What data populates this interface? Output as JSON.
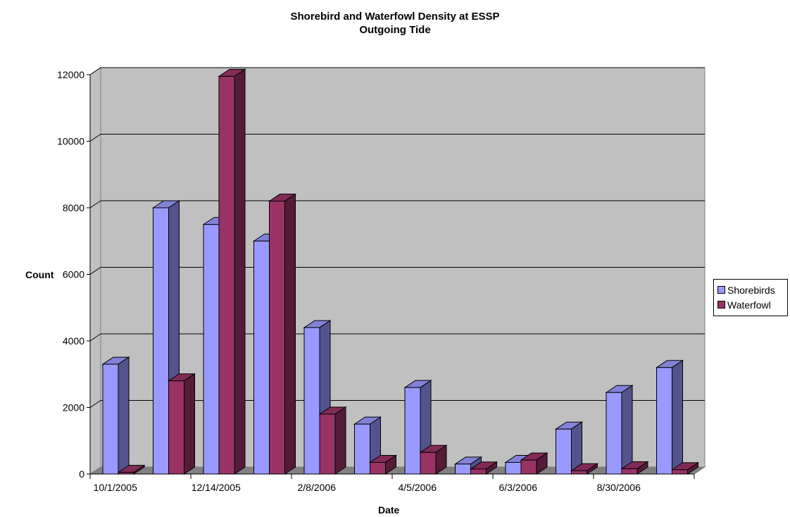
{
  "chart_data": {
    "type": "bar",
    "title": "Shorebird and Waterfowl Density at ESSP",
    "subtitle": "Outgoing Tide",
    "xlabel": "Date",
    "ylabel": "Count",
    "ylim": [
      0,
      12000
    ],
    "yticks": [
      0,
      2000,
      4000,
      6000,
      8000,
      10000,
      12000
    ],
    "xtick_labels": [
      "10/1/2005",
      "12/14/2005",
      "2/8/2006",
      "4/5/2006",
      "6/3/2006",
      "8/30/2006"
    ],
    "category_count": 12,
    "grid": true,
    "legend_position": "right",
    "series": [
      {
        "name": "Shorebirds",
        "color": "#9999ff",
        "values": [
          3300,
          8000,
          7500,
          7000,
          4400,
          1500,
          2600,
          300,
          350,
          1350,
          2450,
          3200
        ]
      },
      {
        "name": "Waterfowl",
        "color": "#993366",
        "values": [
          50,
          2800,
          11950,
          8200,
          1800,
          350,
          650,
          150,
          420,
          100,
          160,
          130
        ]
      }
    ]
  }
}
